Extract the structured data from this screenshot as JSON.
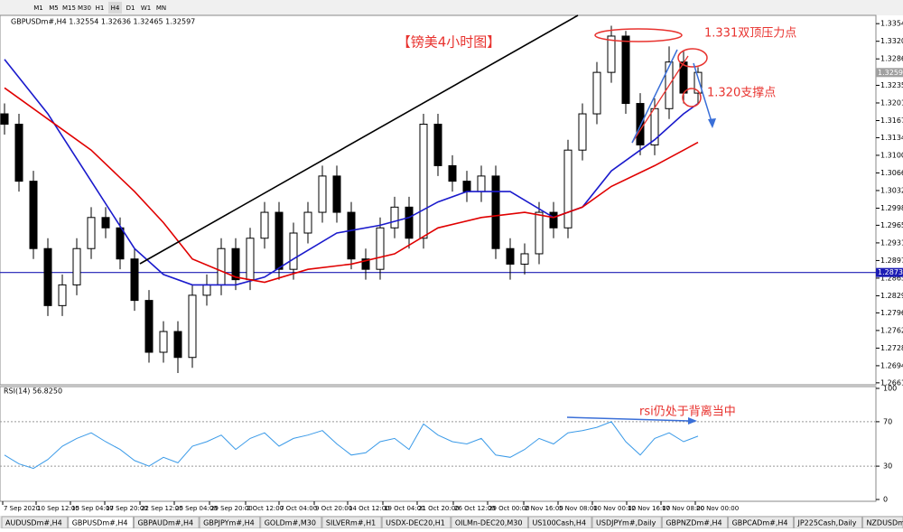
{
  "toolbar": {
    "timeframes": [
      "M1",
      "M5",
      "M15",
      "M30",
      "H1",
      "H4",
      "D1",
      "W1",
      "MN"
    ]
  },
  "active_tab": 1,
  "tabs": [
    "AUDUSDm#,H4",
    "GBPUSDm#,H4",
    "GBPAUDm#,H4",
    "GBPJPYm#,H4",
    "GOLDm#,M30",
    "SILVERm#,H1",
    "USDX-DEC20,H1",
    "OILMn-DEC20,M30",
    "US100Cash,H4",
    "USDJPYm#,Daily",
    "GBPNZDm#,H4",
    "GBPCADm#,H4",
    "JP225Cash,Daily",
    "NZDUSDm#,Daily"
  ],
  "chart_data": [
    {
      "type": "candlestick",
      "title": "GBPUSDm#,H4  1.32554 1.32636 1.32465 1.32597",
      "open": [
        1.318,
        1.316,
        1.305,
        1.292,
        1.281,
        1.285,
        1.292,
        1.298,
        1.296,
        1.29,
        1.282,
        1.272,
        1.276,
        1.271,
        1.283,
        1.285,
        1.292,
        1.286,
        1.294,
        1.299,
        1.288,
        1.295,
        1.299,
        1.306,
        1.299,
        1.29,
        1.288,
        1.296,
        1.3,
        1.294,
        1.316,
        1.308,
        1.305,
        1.303,
        1.306,
        1.292,
        1.289,
        1.291,
        1.299,
        1.296,
        1.311,
        1.318,
        1.326,
        1.333,
        1.32,
        1.312,
        1.319,
        1.328,
        1.322
      ],
      "high": [
        1.32,
        1.318,
        1.307,
        1.294,
        1.287,
        1.294,
        1.3,
        1.3,
        1.298,
        1.292,
        1.284,
        1.278,
        1.278,
        1.285,
        1.287,
        1.294,
        1.294,
        1.296,
        1.301,
        1.301,
        1.297,
        1.301,
        1.308,
        1.308,
        1.301,
        1.292,
        1.298,
        1.302,
        1.302,
        1.318,
        1.318,
        1.31,
        1.307,
        1.308,
        1.308,
        1.294,
        1.293,
        1.301,
        1.301,
        1.313,
        1.32,
        1.328,
        1.335,
        1.334,
        1.322,
        1.321,
        1.331,
        1.33,
        1.327
      ],
      "low": [
        1.314,
        1.303,
        1.29,
        1.279,
        1.279,
        1.283,
        1.29,
        1.294,
        1.288,
        1.28,
        1.27,
        1.27,
        1.268,
        1.269,
        1.281,
        1.283,
        1.284,
        1.284,
        1.292,
        1.286,
        1.286,
        1.293,
        1.297,
        1.297,
        1.288,
        1.286,
        1.286,
        1.294,
        1.292,
        1.292,
        1.306,
        1.303,
        1.301,
        1.301,
        1.29,
        1.286,
        1.287,
        1.289,
        1.294,
        1.294,
        1.309,
        1.316,
        1.324,
        1.318,
        1.31,
        1.31,
        1.317,
        1.32,
        1.32
      ],
      "close": [
        1.316,
        1.305,
        1.292,
        1.281,
        1.285,
        1.292,
        1.298,
        1.296,
        1.29,
        1.282,
        1.272,
        1.276,
        1.271,
        1.283,
        1.285,
        1.292,
        1.286,
        1.294,
        1.299,
        1.288,
        1.295,
        1.299,
        1.306,
        1.299,
        1.29,
        1.288,
        1.296,
        1.3,
        1.294,
        1.316,
        1.308,
        1.305,
        1.303,
        1.306,
        1.292,
        1.289,
        1.291,
        1.299,
        1.296,
        1.311,
        1.318,
        1.326,
        1.333,
        1.32,
        1.312,
        1.319,
        1.328,
        1.322,
        1.326
      ],
      "up_color": "#ffffff",
      "down_color": "#000000",
      "lines": [
        {
          "color": "#1a1acc",
          "x": [
            0,
            3,
            6,
            9,
            11,
            13,
            16,
            18,
            20,
            23,
            26,
            28,
            30,
            32,
            35,
            38,
            40,
            42,
            45,
            47,
            48
          ],
          "values": [
            1.3285,
            1.318,
            1.305,
            1.292,
            1.287,
            1.285,
            1.285,
            1.2865,
            1.29,
            1.295,
            1.2965,
            1.298,
            1.301,
            1.303,
            1.303,
            1.298,
            1.3,
            1.307,
            1.313,
            1.318,
            1.32
          ]
        },
        {
          "color": "#e00000",
          "x": [
            0,
            3,
            6,
            9,
            11,
            13,
            16,
            18,
            21,
            24,
            27,
            30,
            33,
            36,
            38,
            40,
            42,
            45,
            48
          ],
          "values": [
            1.323,
            1.317,
            1.311,
            1.303,
            1.297,
            1.29,
            1.2865,
            1.2855,
            1.288,
            1.289,
            1.291,
            1.296,
            1.298,
            1.299,
            1.298,
            1.3,
            1.304,
            1.308,
            1.3125
          ]
        }
      ],
      "hlines": [
        {
          "value": 1.28739,
          "label": "1.28739",
          "color": "#1c1cb4"
        }
      ],
      "last_price": {
        "value": 1.32597,
        "label": "1.32597"
      },
      "xlim": [
        -0.3125,
        60.3125
      ],
      "ylim": [
        1.2659,
        1.337
      ],
      "yticks": [
        {
          "value": 1.3354,
          "label": "1.33540"
        },
        {
          "value": 1.332,
          "label": "1.33200"
        },
        {
          "value": 1.3286,
          "label": "1.32860"
        },
        {
          "value": 1.3235,
          "label": "1.32350"
        },
        {
          "value": 1.3201,
          "label": "1.32010"
        },
        {
          "value": 1.3167,
          "label": "1.31670"
        },
        {
          "value": 1.3134,
          "label": "1.31340"
        },
        {
          "value": 1.31,
          "label": "1.31000"
        },
        {
          "value": 1.3066,
          "label": "1.30660"
        },
        {
          "value": 1.3032,
          "label": "1.30320"
        },
        {
          "value": 1.2998,
          "label": "1.29980"
        },
        {
          "value": 1.2965,
          "label": "1.29650"
        },
        {
          "value": 1.2931,
          "label": "1.29310"
        },
        {
          "value": 1.2897,
          "label": "1.28970"
        },
        {
          "value": 1.2863,
          "label": "1.28630"
        },
        {
          "value": 1.2829,
          "label": "1.28290"
        },
        {
          "value": 1.2796,
          "label": "1.27960"
        },
        {
          "value": 1.2762,
          "label": "1.27620"
        },
        {
          "value": 1.2728,
          "label": "1.27280"
        },
        {
          "value": 1.2694,
          "label": "1.26940"
        },
        {
          "value": 1.2661,
          "label": "1.26610"
        }
      ],
      "annotations": [
        "【镑美4小时图】",
        "1.331双顶压力点",
        "1.320支撑点"
      ]
    },
    {
      "type": "line",
      "title": "RSI(14) 56.8250",
      "color": "#3a9ae8",
      "values": [
        40,
        32,
        28,
        36,
        48,
        55,
        60,
        52,
        45,
        35,
        30,
        38,
        33,
        48,
        52,
        58,
        45,
        55,
        60,
        48,
        55,
        58,
        62,
        50,
        40,
        42,
        52,
        55,
        45,
        68,
        58,
        52,
        50,
        55,
        40,
        38,
        45,
        55,
        50,
        60,
        62,
        65,
        70,
        52,
        40,
        55,
        60,
        52,
        57
      ],
      "xlim": [
        -0.3125,
        60.3125
      ],
      "ylim": [
        0,
        100
      ],
      "yticks": [
        0,
        30,
        70,
        100
      ],
      "xticks": [
        {
          "value": -0.125,
          "label": "7 Sep 2020"
        },
        {
          "value": 2.1875,
          "label": "10 Sep 12:00"
        },
        {
          "value": 4.5625,
          "label": "15 Sep 04:00"
        },
        {
          "value": 6.9375,
          "label": "17 Sep 20:00"
        },
        {
          "value": 9.375,
          "label": "22 Sep 12:00"
        },
        {
          "value": 11.75,
          "label": "25 Sep 04:00"
        },
        {
          "value": 14.1875,
          "label": "29 Sep 20:00"
        },
        {
          "value": 16.6875,
          "label": "2 Oct 12:00"
        },
        {
          "value": 19,
          "label": "7 Oct 04:00"
        },
        {
          "value": 21.4375,
          "label": "9 Oct 20:00"
        },
        {
          "value": 23.75,
          "label": "14 Oct 12:00"
        },
        {
          "value": 26.1875,
          "label": "19 Oct 04:00"
        },
        {
          "value": 28.5625,
          "label": "21 Oct 20:00"
        },
        {
          "value": 31.0625,
          "label": "26 Oct 12:00"
        },
        {
          "value": 33.4375,
          "label": "29 Oct 00:00"
        },
        {
          "value": 35.9375,
          "label": "2 Nov 16:00"
        },
        {
          "value": 38.3125,
          "label": "5 Nov 08:00"
        },
        {
          "value": 40.6875,
          "label": "10 Nov 00:00"
        },
        {
          "value": 43.0625,
          "label": "12 Nov 16:00"
        },
        {
          "value": 45.4375,
          "label": "17 Nov 08:00"
        },
        {
          "value": 47.8125,
          "label": "20 Nov 00:00"
        }
      ],
      "annotations": [
        "rsi仍处于背离当中"
      ]
    }
  ]
}
